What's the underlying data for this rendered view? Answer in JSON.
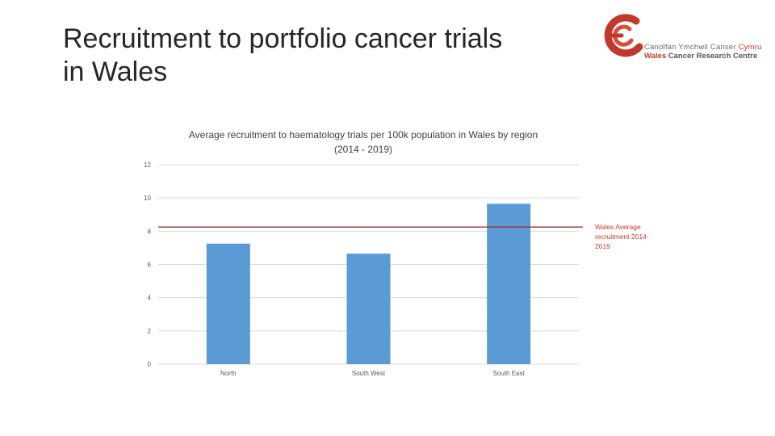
{
  "slide": {
    "title": "Recruitment to portfolio cancer trials in Wales"
  },
  "logo": {
    "welsh_part1": "Canolfan Ymchwil Canser ",
    "welsh_part2": "Cymru",
    "english_part1": "Wales",
    "english_part2": " Cancer Research Centre"
  },
  "colors": {
    "bar": "#5b9bd5",
    "average_line": "#a52a2a",
    "grid": "#d9d9d9",
    "logo_red": "#c0392b"
  },
  "chart_data": {
    "type": "bar",
    "title": "Average recruitment to haematology trials per 100k population in Wales by region (2014 - 2019)",
    "categories": [
      "North",
      "South West",
      "South East"
    ],
    "values": [
      7.25,
      6.65,
      9.65
    ],
    "ylim": [
      0,
      12
    ],
    "yticks": [
      0,
      2,
      4,
      6,
      8,
      10,
      12
    ],
    "reference_line": {
      "value": 8.25,
      "label": "Wales Average recruitment 2014- 2019"
    },
    "grid": true,
    "legend_position": "right"
  }
}
